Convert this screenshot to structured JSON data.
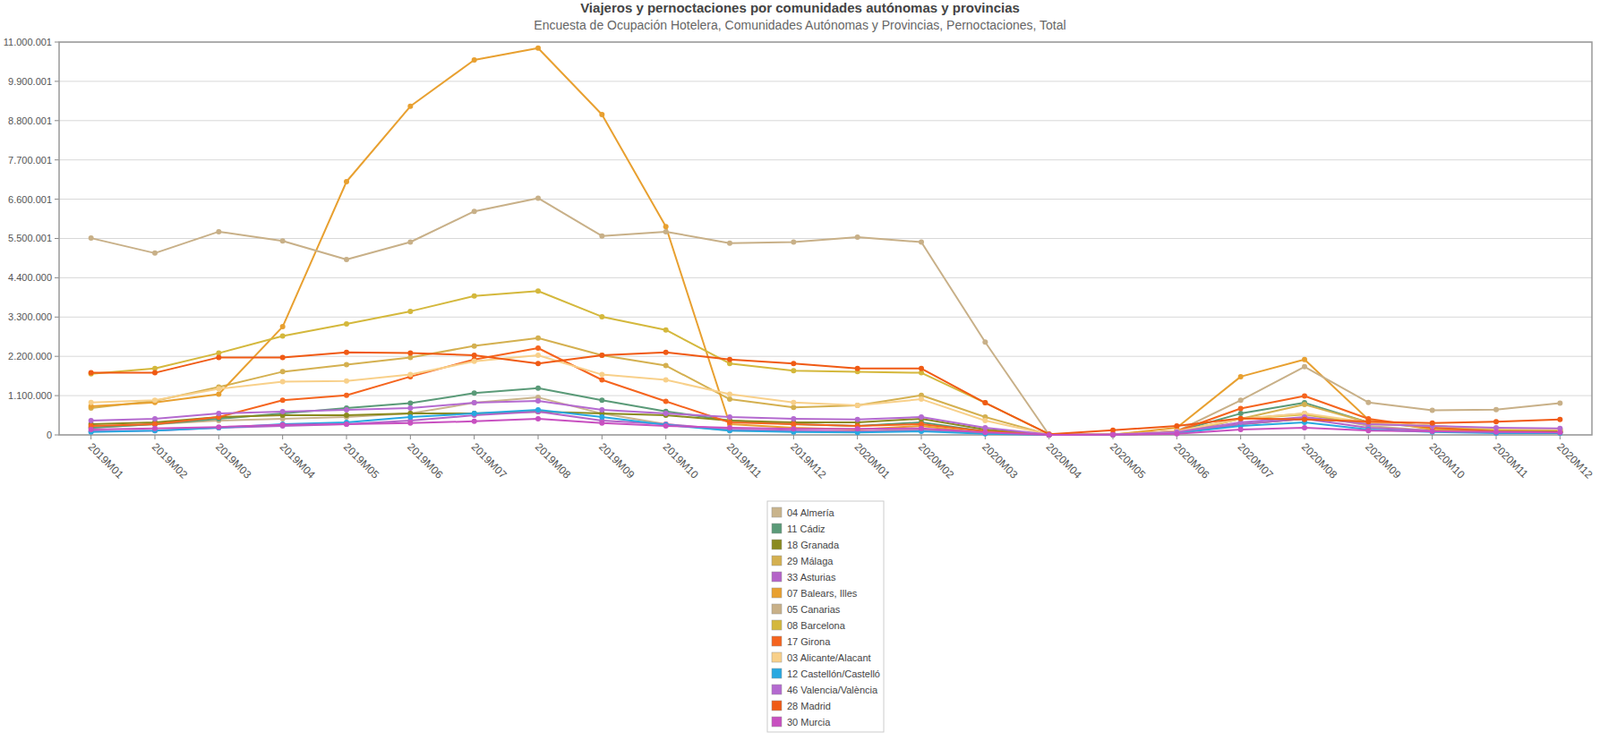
{
  "chart_data": {
    "type": "line",
    "title": "Viajeros y pernoctaciones por comunidades autónomas y provincias",
    "subtitle": "Encuesta de Ocupación Hotelera, Comunidades Autónomas y Provincias, Pernoctaciones, Total",
    "categories": [
      "2019M01",
      "2019M02",
      "2019M03",
      "2019M04",
      "2019M05",
      "2019M06",
      "2019M07",
      "2019M08",
      "2019M09",
      "2019M10",
      "2019M11",
      "2019M12",
      "2020M01",
      "2020M02",
      "2020M03",
      "2020M04",
      "2020M05",
      "2020M06",
      "2020M07",
      "2020M08",
      "2020M09",
      "2020M10",
      "2020M11",
      "2020M12"
    ],
    "ylim": [
      0,
      11000001
    ],
    "yticks": [
      0,
      {
        "value": 1100000,
        "label": "1.100.000"
      },
      {
        "value": 2200000,
        "label": "2.200.000"
      },
      {
        "value": 3300000,
        "label": "3.300.000"
      },
      {
        "value": 4400000,
        "label": "4.400.000"
      },
      {
        "value": 5500001,
        "label": "5.500.001"
      },
      {
        "value": 6600001,
        "label": "6.600.001"
      },
      {
        "value": 7700001,
        "label": "7.700.001"
      },
      {
        "value": 8800001,
        "label": "8.800.001"
      },
      {
        "value": 9900001,
        "label": "9.900.001"
      },
      {
        "value": 11000001,
        "label": "11.000.001"
      }
    ],
    "grid": true,
    "legend": "bottom",
    "marker": "circle",
    "series": [
      {
        "name": "04 Almería",
        "color": "#c9b48c",
        "values": [
          200000,
          300000,
          400000,
          450000,
          500000,
          600000,
          900000,
          1050000,
          600000,
          300000,
          120000,
          100000,
          100000,
          150000,
          50000,
          0,
          5000,
          50000,
          450000,
          600000,
          250000,
          120000,
          80000,
          70000
        ]
      },
      {
        "name": "11 Cádiz",
        "color": "#5a9a78",
        "values": [
          200000,
          300000,
          450000,
          600000,
          750000,
          890000,
          1170000,
          1310000,
          970000,
          660000,
          400000,
          300000,
          250000,
          350000,
          100000,
          0,
          5000,
          100000,
          600000,
          900000,
          350000,
          200000,
          100000,
          80000
        ]
      },
      {
        "name": "18 Granada",
        "color": "#8a8a1e",
        "values": [
          300000,
          350000,
          500000,
          550000,
          550000,
          600000,
          600000,
          650000,
          600000,
          550000,
          400000,
          350000,
          350000,
          450000,
          150000,
          0,
          5000,
          50000,
          300000,
          450000,
          350000,
          250000,
          150000,
          120000
        ]
      },
      {
        "name": "29 Málaga",
        "color": "#d4b050",
        "values": [
          750000,
          950000,
          1340000,
          1770000,
          1970000,
          2170000,
          2490000,
          2710000,
          2230000,
          1940000,
          1000000,
          770000,
          830000,
          1110000,
          500000,
          10000,
          10000,
          50000,
          450000,
          850000,
          350000,
          250000,
          150000,
          150000
        ]
      },
      {
        "name": "33 Asturias",
        "color": "#b463c8",
        "values": [
          100000,
          120000,
          200000,
          250000,
          300000,
          400000,
          550000,
          650000,
          400000,
          300000,
          150000,
          120000,
          100000,
          120000,
          50000,
          0,
          5000,
          50000,
          300000,
          450000,
          200000,
          120000,
          70000,
          60000
        ]
      },
      {
        "name": "07 Balears, Illes",
        "color": "#e8a030",
        "values": [
          800000,
          910000,
          1140000,
          3030000,
          7090000,
          9200000,
          10500000,
          10830000,
          8970000,
          5830000,
          300000,
          200000,
          150000,
          250000,
          50000,
          0,
          5000,
          200000,
          1630000,
          2110000,
          430000,
          150000,
          80000,
          80000
        ]
      },
      {
        "name": "05 Canarias",
        "color": "#c8b088",
        "values": [
          5510000,
          5090000,
          5690000,
          5430000,
          4910000,
          5400000,
          6260000,
          6630000,
          5570000,
          5690000,
          5370000,
          5400000,
          5540000,
          5400000,
          2600000,
          0,
          10000,
          100000,
          970000,
          1910000,
          910000,
          690000,
          710000,
          890000
        ]
      },
      {
        "name": "08 Barcelona",
        "color": "#d4b83c",
        "values": [
          1710000,
          1860000,
          2290000,
          2770000,
          3110000,
          3460000,
          3890000,
          4030000,
          3310000,
          2940000,
          2000000,
          1800000,
          1770000,
          1740000,
          900000,
          20000,
          20000,
          100000,
          450000,
          570000,
          300000,
          250000,
          150000,
          150000
        ]
      },
      {
        "name": "17 Girona",
        "color": "#f5641e",
        "values": [
          250000,
          300000,
          500000,
          970000,
          1110000,
          1630000,
          2110000,
          2430000,
          1540000,
          940000,
          350000,
          300000,
          250000,
          300000,
          100000,
          0,
          5000,
          100000,
          740000,
          1090000,
          450000,
          200000,
          100000,
          80000
        ]
      },
      {
        "name": "03 Alicante/Alacant",
        "color": "#f8d08a",
        "values": [
          910000,
          970000,
          1290000,
          1490000,
          1510000,
          1690000,
          2060000,
          2230000,
          1690000,
          1540000,
          1140000,
          910000,
          830000,
          1000000,
          400000,
          10000,
          10000,
          100000,
          450000,
          600000,
          350000,
          250000,
          180000,
          150000
        ]
      },
      {
        "name": "12 Castellón/Castelló",
        "color": "#28a8e0",
        "values": [
          80000,
          120000,
          200000,
          300000,
          350000,
          500000,
          600000,
          700000,
          500000,
          280000,
          120000,
          80000,
          70000,
          100000,
          30000,
          0,
          5000,
          50000,
          250000,
          350000,
          150000,
          80000,
          50000,
          50000
        ]
      },
      {
        "name": "46 Valencia/València",
        "color": "#b46ad0",
        "values": [
          400000,
          450000,
          600000,
          650000,
          700000,
          750000,
          900000,
          950000,
          700000,
          600000,
          500000,
          450000,
          430000,
          500000,
          200000,
          10000,
          10000,
          80000,
          350000,
          500000,
          300000,
          250000,
          200000,
          180000
        ]
      },
      {
        "name": "28 Madrid",
        "color": "#f05a14",
        "values": [
          1740000,
          1740000,
          2170000,
          2170000,
          2310000,
          2290000,
          2230000,
          2000000,
          2230000,
          2310000,
          2110000,
          2000000,
          1860000,
          1860000,
          900000,
          20000,
          130000,
          250000,
          460000,
          430000,
          370000,
          330000,
          370000,
          430000
        ]
      },
      {
        "name": "30 Murcia",
        "color": "#c850c0",
        "values": [
          150000,
          180000,
          220000,
          280000,
          300000,
          330000,
          380000,
          450000,
          330000,
          250000,
          200000,
          170000,
          170000,
          180000,
          70000,
          0,
          5000,
          30000,
          150000,
          200000,
          120000,
          100000,
          80000,
          70000
        ]
      }
    ]
  }
}
